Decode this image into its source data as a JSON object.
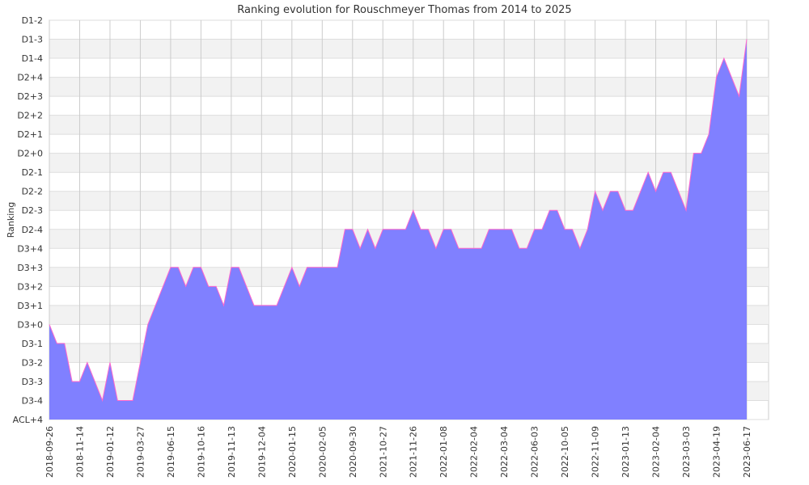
{
  "chart_data": {
    "type": "area",
    "title": "Ranking evolution for Rouschmeyer Thomas from 2014 to 2025",
    "y_label": "Ranking",
    "categories": [
      "2018-09-26",
      null,
      null,
      null,
      "2018-11-14",
      null,
      null,
      null,
      "2019-01-12",
      null,
      null,
      null,
      "2019-03-27",
      null,
      null,
      null,
      "2019-06-15",
      null,
      null,
      null,
      "2019-10-16",
      null,
      null,
      null,
      "2019-11-13",
      null,
      null,
      null,
      "2019-12-04",
      null,
      null,
      null,
      "2020-01-15",
      null,
      null,
      null,
      "2020-02-05",
      null,
      null,
      null,
      "2020-09-30",
      null,
      null,
      null,
      "2021-10-27",
      null,
      null,
      null,
      "2021-11-26",
      null,
      null,
      null,
      "2022-01-08",
      null,
      null,
      null,
      "2022-02-04",
      null,
      null,
      null,
      "2022-03-04",
      null,
      null,
      null,
      "2022-06-03",
      null,
      null,
      null,
      "2022-10-05",
      null,
      null,
      null,
      "2022-11-09",
      null,
      null,
      null,
      "2023-01-13",
      null,
      null,
      null,
      "2023-02-04",
      null,
      null,
      null,
      "2023-03-03",
      null,
      null,
      null,
      "2023-04-19",
      null,
      null,
      null,
      "2023-06-17"
    ],
    "values": [
      5,
      4,
      4,
      2,
      2,
      3,
      2,
      1,
      3,
      1,
      1,
      1,
      3,
      5,
      6,
      7,
      8,
      8,
      7,
      8,
      8,
      7,
      7,
      6,
      8,
      8,
      7,
      6,
      6,
      6,
      6,
      7,
      8,
      7,
      8,
      8,
      8,
      8,
      8,
      10,
      10,
      9,
      10,
      9,
      10,
      10,
      10,
      10,
      11,
      10,
      10,
      9,
      10,
      10,
      9,
      9,
      9,
      9,
      10,
      10,
      10,
      10,
      9,
      9,
      10,
      10,
      11,
      11,
      10,
      10,
      9,
      10,
      12,
      11,
      12,
      12,
      11,
      11,
      12,
      13,
      12,
      13,
      13,
      12,
      11,
      14,
      14,
      15,
      18,
      19,
      18,
      17,
      20
    ],
    "color": "#8080ff",
    "line_color": "#ff66cc",
    "ylim": [
      0,
      21
    ],
    "yticks": [
      {
        "value": 0,
        "label": "ACL+4"
      },
      {
        "value": 1,
        "label": "D3-4"
      },
      {
        "value": 2,
        "label": "D3-3"
      },
      {
        "value": 3,
        "label": "D3-2"
      },
      {
        "value": 4,
        "label": "D3-1"
      },
      {
        "value": 5,
        "label": "D3+0"
      },
      {
        "value": 6,
        "label": "D3+1"
      },
      {
        "value": 7,
        "label": "D3+2"
      },
      {
        "value": 8,
        "label": "D3+3"
      },
      {
        "value": 9,
        "label": "D3+4"
      },
      {
        "value": 10,
        "label": "D2-4"
      },
      {
        "value": 11,
        "label": "D2-3"
      },
      {
        "value": 12,
        "label": "D2-2"
      },
      {
        "value": 13,
        "label": "D2-1"
      },
      {
        "value": 14,
        "label": "D2+0"
      },
      {
        "value": 15,
        "label": "D2+1"
      },
      {
        "value": 16,
        "label": "D2+2"
      },
      {
        "value": 17,
        "label": "D2+3"
      },
      {
        "value": 18,
        "label": "D2+4"
      },
      {
        "value": 19,
        "label": "D1-4"
      },
      {
        "value": 20,
        "label": "D1-3"
      },
      {
        "value": 21,
        "label": "D1-2"
      }
    ],
    "grid": true
  }
}
